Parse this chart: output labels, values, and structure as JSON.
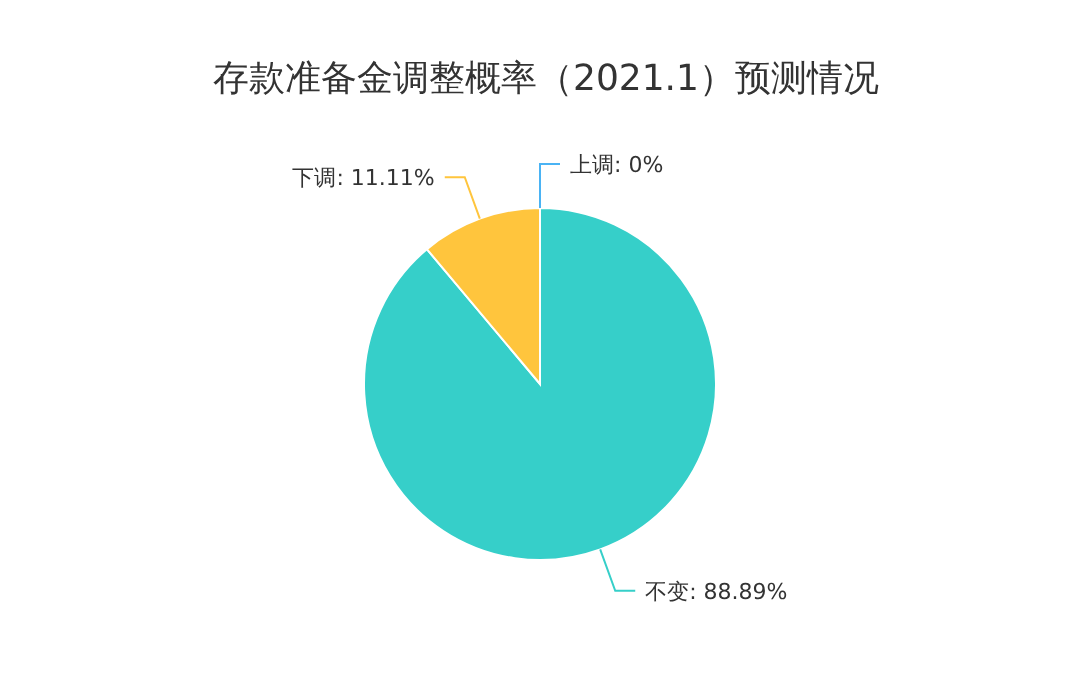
{
  "chart_data": {
    "type": "pie",
    "title": "存款准备金调整概率（2021.1）预测情况",
    "categories": [
      "上调",
      "不变",
      "下调"
    ],
    "values": [
      0,
      88.89,
      11.11
    ],
    "value_labels": [
      ": 0%",
      ": 88.89%",
      ": 11.11%"
    ],
    "colors": [
      "#4ab3f4",
      "#36cfc9",
      "#ffc53d"
    ],
    "legend": false
  }
}
